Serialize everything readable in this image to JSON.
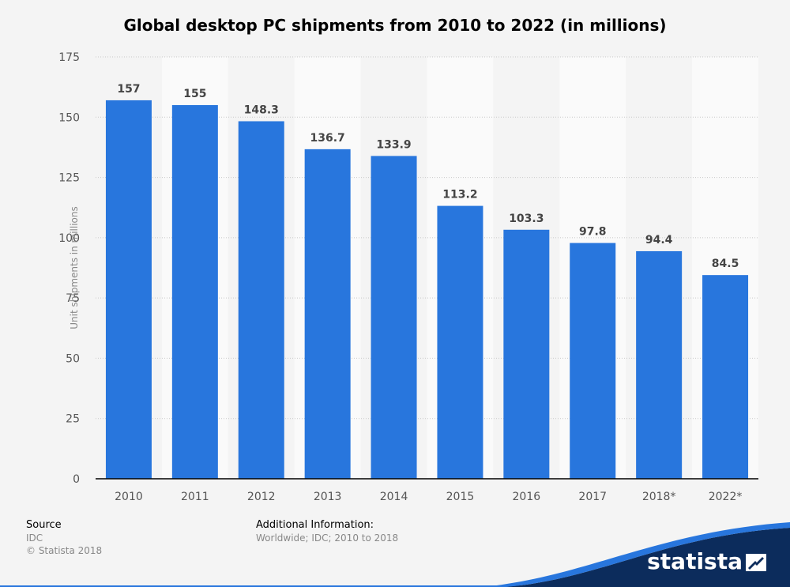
{
  "chart_data": {
    "type": "bar",
    "title": "Global desktop PC shipments from 2010 to 2022 (in millions)",
    "xlabel": "",
    "ylabel": "Unit shipments in millions",
    "categories": [
      "2010",
      "2011",
      "2012",
      "2013",
      "2014",
      "2015",
      "2016",
      "2017",
      "2018*",
      "2022*"
    ],
    "values": [
      157,
      155,
      148.3,
      136.7,
      133.9,
      113.2,
      103.3,
      97.8,
      94.4,
      84.5
    ],
    "value_labels": [
      "157",
      "155",
      "148.3",
      "136.7",
      "133.9",
      "113.2",
      "103.3",
      "97.8",
      "94.4",
      "84.5"
    ],
    "ylim": [
      0,
      175
    ],
    "yticks": [
      0,
      25,
      50,
      75,
      100,
      125,
      150,
      175
    ],
    "grid": true,
    "colors": {
      "bar": "#2876dd",
      "band_odd": "#f4f4f4",
      "band_even": "#fafafa",
      "grid": "#c8c8c8",
      "axis": "#000000",
      "tick_text": "#555555",
      "value_text": "#444444"
    }
  },
  "footer": {
    "source_heading": "Source",
    "source_lines": [
      "IDC",
      "© Statista 2018"
    ],
    "info_heading": "Additional Information:",
    "info_line": "Worldwide; IDC; 2010 to 2018"
  },
  "logo": {
    "text": "statista",
    "brand_dark": "#0c2c5c",
    "brand_blue": "#2876dd"
  }
}
